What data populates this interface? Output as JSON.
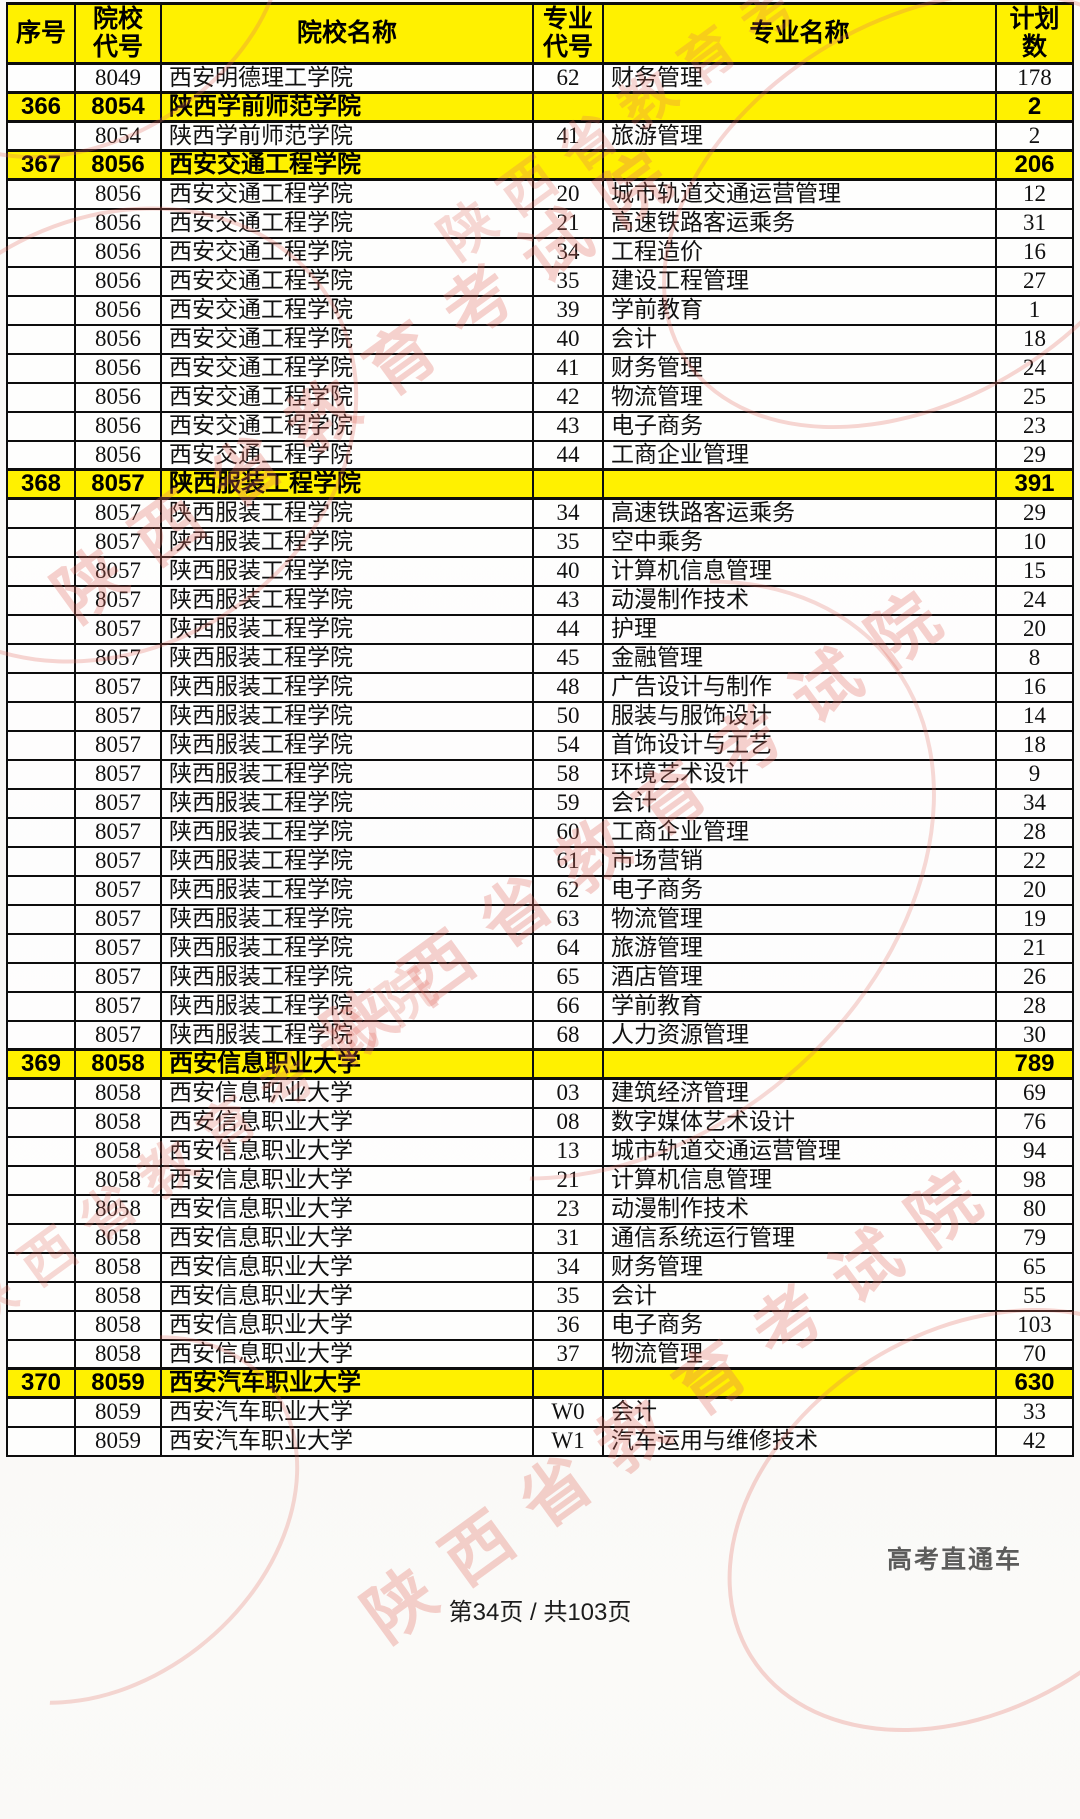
{
  "colors": {
    "highlight": "#FFF100",
    "border": "#0d0d0d",
    "watermark": "#E26C60"
  },
  "header": {
    "columns": [
      "序号",
      "院校\n代号",
      "院校名称",
      "专业\n代号",
      "专业名称",
      "计划\n数"
    ]
  },
  "table": {
    "rows": [
      {
        "sn": "",
        "code": "8049",
        "school": "西安明德理工学院",
        "mcode": "62",
        "major": "财务管理",
        "plan": "178",
        "hl": false
      },
      {
        "sn": "366",
        "code": "8054",
        "school": "陕西学前师范学院",
        "mcode": "",
        "major": "",
        "plan": "2",
        "hl": true
      },
      {
        "sn": "",
        "code": "8054",
        "school": "陕西学前师范学院",
        "mcode": "41",
        "major": "旅游管理",
        "plan": "2",
        "hl": false
      },
      {
        "sn": "367",
        "code": "8056",
        "school": "西安交通工程学院",
        "mcode": "",
        "major": "",
        "plan": "206",
        "hl": true
      },
      {
        "sn": "",
        "code": "8056",
        "school": "西安交通工程学院",
        "mcode": "20",
        "major": "城市轨道交通运营管理",
        "plan": "12",
        "hl": false
      },
      {
        "sn": "",
        "code": "8056",
        "school": "西安交通工程学院",
        "mcode": "21",
        "major": "高速铁路客运乘务",
        "plan": "31",
        "hl": false
      },
      {
        "sn": "",
        "code": "8056",
        "school": "西安交通工程学院",
        "mcode": "34",
        "major": "工程造价",
        "plan": "16",
        "hl": false
      },
      {
        "sn": "",
        "code": "8056",
        "school": "西安交通工程学院",
        "mcode": "35",
        "major": "建设工程管理",
        "plan": "27",
        "hl": false
      },
      {
        "sn": "",
        "code": "8056",
        "school": "西安交通工程学院",
        "mcode": "39",
        "major": "学前教育",
        "plan": "1",
        "hl": false
      },
      {
        "sn": "",
        "code": "8056",
        "school": "西安交通工程学院",
        "mcode": "40",
        "major": "会计",
        "plan": "18",
        "hl": false
      },
      {
        "sn": "",
        "code": "8056",
        "school": "西安交通工程学院",
        "mcode": "41",
        "major": "财务管理",
        "plan": "24",
        "hl": false
      },
      {
        "sn": "",
        "code": "8056",
        "school": "西安交通工程学院",
        "mcode": "42",
        "major": "物流管理",
        "plan": "25",
        "hl": false
      },
      {
        "sn": "",
        "code": "8056",
        "school": "西安交通工程学院",
        "mcode": "43",
        "major": "电子商务",
        "plan": "23",
        "hl": false
      },
      {
        "sn": "",
        "code": "8056",
        "school": "西安交通工程学院",
        "mcode": "44",
        "major": "工商企业管理",
        "plan": "29",
        "hl": false
      },
      {
        "sn": "368",
        "code": "8057",
        "school": "陕西服装工程学院",
        "mcode": "",
        "major": "",
        "plan": "391",
        "hl": true
      },
      {
        "sn": "",
        "code": "8057",
        "school": "陕西服装工程学院",
        "mcode": "34",
        "major": "高速铁路客运乘务",
        "plan": "29",
        "hl": false
      },
      {
        "sn": "",
        "code": "8057",
        "school": "陕西服装工程学院",
        "mcode": "35",
        "major": "空中乘务",
        "plan": "10",
        "hl": false
      },
      {
        "sn": "",
        "code": "8057",
        "school": "陕西服装工程学院",
        "mcode": "40",
        "major": "计算机信息管理",
        "plan": "15",
        "hl": false
      },
      {
        "sn": "",
        "code": "8057",
        "school": "陕西服装工程学院",
        "mcode": "43",
        "major": "动漫制作技术",
        "plan": "24",
        "hl": false
      },
      {
        "sn": "",
        "code": "8057",
        "school": "陕西服装工程学院",
        "mcode": "44",
        "major": "护理",
        "plan": "20",
        "hl": false
      },
      {
        "sn": "",
        "code": "8057",
        "school": "陕西服装工程学院",
        "mcode": "45",
        "major": "金融管理",
        "plan": "8",
        "hl": false
      },
      {
        "sn": "",
        "code": "8057",
        "school": "陕西服装工程学院",
        "mcode": "48",
        "major": "广告设计与制作",
        "plan": "16",
        "hl": false
      },
      {
        "sn": "",
        "code": "8057",
        "school": "陕西服装工程学院",
        "mcode": "50",
        "major": "服装与服饰设计",
        "plan": "14",
        "hl": false
      },
      {
        "sn": "",
        "code": "8057",
        "school": "陕西服装工程学院",
        "mcode": "54",
        "major": "首饰设计与工艺",
        "plan": "18",
        "hl": false
      },
      {
        "sn": "",
        "code": "8057",
        "school": "陕西服装工程学院",
        "mcode": "58",
        "major": "环境艺术设计",
        "plan": "9",
        "hl": false
      },
      {
        "sn": "",
        "code": "8057",
        "school": "陕西服装工程学院",
        "mcode": "59",
        "major": "会计",
        "plan": "34",
        "hl": false
      },
      {
        "sn": "",
        "code": "8057",
        "school": "陕西服装工程学院",
        "mcode": "60",
        "major": "工商企业管理",
        "plan": "28",
        "hl": false
      },
      {
        "sn": "",
        "code": "8057",
        "school": "陕西服装工程学院",
        "mcode": "61",
        "major": "市场营销",
        "plan": "22",
        "hl": false
      },
      {
        "sn": "",
        "code": "8057",
        "school": "陕西服装工程学院",
        "mcode": "62",
        "major": "电子商务",
        "plan": "20",
        "hl": false
      },
      {
        "sn": "",
        "code": "8057",
        "school": "陕西服装工程学院",
        "mcode": "63",
        "major": "物流管理",
        "plan": "19",
        "hl": false
      },
      {
        "sn": "",
        "code": "8057",
        "school": "陕西服装工程学院",
        "mcode": "64",
        "major": "旅游管理",
        "plan": "21",
        "hl": false
      },
      {
        "sn": "",
        "code": "8057",
        "school": "陕西服装工程学院",
        "mcode": "65",
        "major": "酒店管理",
        "plan": "26",
        "hl": false
      },
      {
        "sn": "",
        "code": "8057",
        "school": "陕西服装工程学院",
        "mcode": "66",
        "major": "学前教育",
        "plan": "28",
        "hl": false
      },
      {
        "sn": "",
        "code": "8057",
        "school": "陕西服装工程学院",
        "mcode": "68",
        "major": "人力资源管理",
        "plan": "30",
        "hl": false
      },
      {
        "sn": "369",
        "code": "8058",
        "school": "西安信息职业大学",
        "mcode": "",
        "major": "",
        "plan": "789",
        "hl": true
      },
      {
        "sn": "",
        "code": "8058",
        "school": "西安信息职业大学",
        "mcode": "03",
        "major": "建筑经济管理",
        "plan": "69",
        "hl": false
      },
      {
        "sn": "",
        "code": "8058",
        "school": "西安信息职业大学",
        "mcode": "08",
        "major": "数字媒体艺术设计",
        "plan": "76",
        "hl": false
      },
      {
        "sn": "",
        "code": "8058",
        "school": "西安信息职业大学",
        "mcode": "13",
        "major": "城市轨道交通运营管理",
        "plan": "94",
        "hl": false
      },
      {
        "sn": "",
        "code": "8058",
        "school": "西安信息职业大学",
        "mcode": "21",
        "major": "计算机信息管理",
        "plan": "98",
        "hl": false
      },
      {
        "sn": "",
        "code": "8058",
        "school": "西安信息职业大学",
        "mcode": "23",
        "major": "动漫制作技术",
        "plan": "80",
        "hl": false
      },
      {
        "sn": "",
        "code": "8058",
        "school": "西安信息职业大学",
        "mcode": "31",
        "major": "通信系统运行管理",
        "plan": "79",
        "hl": false
      },
      {
        "sn": "",
        "code": "8058",
        "school": "西安信息职业大学",
        "mcode": "34",
        "major": "财务管理",
        "plan": "65",
        "hl": false
      },
      {
        "sn": "",
        "code": "8058",
        "school": "西安信息职业大学",
        "mcode": "35",
        "major": "会计",
        "plan": "55",
        "hl": false
      },
      {
        "sn": "",
        "code": "8058",
        "school": "西安信息职业大学",
        "mcode": "36",
        "major": "电子商务",
        "plan": "103",
        "hl": false
      },
      {
        "sn": "",
        "code": "8058",
        "school": "西安信息职业大学",
        "mcode": "37",
        "major": "物流管理",
        "plan": "70",
        "hl": false
      },
      {
        "sn": "370",
        "code": "8059",
        "school": "西安汽车职业大学",
        "mcode": "",
        "major": "",
        "plan": "630",
        "hl": true
      },
      {
        "sn": "",
        "code": "8059",
        "school": "西安汽车职业大学",
        "mcode": "W0",
        "major": "会计",
        "plan": "33",
        "hl": false
      },
      {
        "sn": "",
        "code": "8059",
        "school": "西安汽车职业大学",
        "mcode": "W1",
        "major": "汽车运用与维修技术",
        "plan": "42",
        "hl": false
      }
    ]
  },
  "footer": {
    "page_info": "第34页 / 共103页",
    "brand": "高考直通车"
  },
  "watermark": {
    "text": "陕西省教育考试院"
  }
}
